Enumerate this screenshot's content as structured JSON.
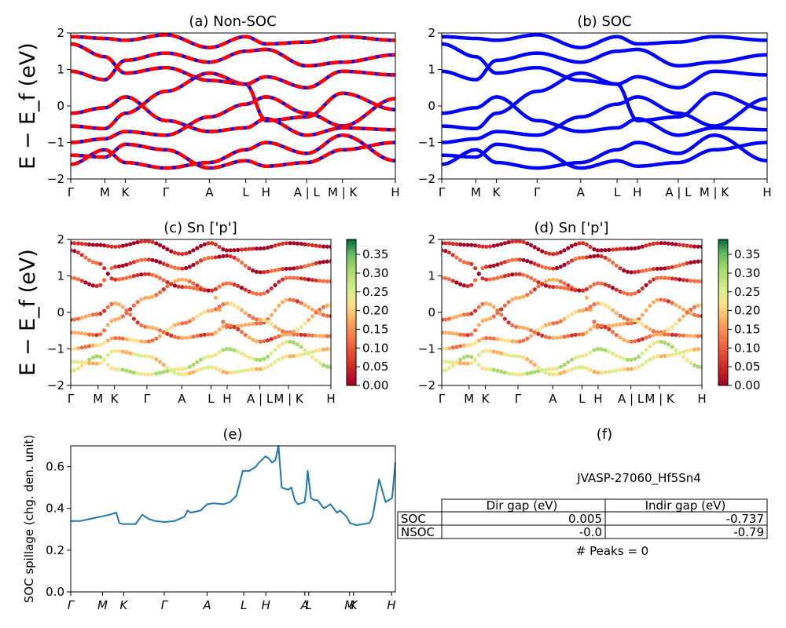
{
  "chart_data": [
    {
      "id": "a",
      "type": "line",
      "title": "(a) Non-SOC",
      "ylabel": "E − E_f (eV)",
      "ylim": [
        -2,
        2
      ],
      "yticks": [
        "2",
        "1",
        "0",
        "−1",
        "−2"
      ],
      "xticks": [
        "Γ",
        "M",
        "K",
        "Γ",
        "A",
        "L",
        "H",
        "A | L",
        "M | K",
        "H"
      ],
      "xtick_fracs": [
        0,
        0.105,
        0.168,
        0.293,
        0.427,
        0.539,
        0.601,
        0.727,
        0.837,
        1.0
      ],
      "series": [
        {
          "values": [
            -0.55,
            -0.62,
            -0.2,
            0.4,
            0.9,
            0.6,
            -0.4,
            -0.3,
            0.35,
            -0.1
          ]
        },
        {
          "values": [
            0.95,
            0.72,
            1.25,
            1.45,
            1.2,
            1.5,
            1.55,
            1.1,
            1.2,
            1.4
          ]
        },
        {
          "values": [
            -1.0,
            -0.9,
            -0.7,
            -0.8,
            -0.3,
            0.05,
            0.25,
            -0.2,
            -0.55,
            0.2
          ]
        },
        {
          "values": [
            -1.6,
            -1.2,
            -1.55,
            -1.7,
            -1.55,
            -1.2,
            -1.0,
            -1.3,
            -0.8,
            -1.5
          ]
        },
        {
          "values": [
            1.7,
            1.35,
            0.9,
            1.05,
            0.7,
            0.6,
            0.8,
            0.5,
            0.95,
            0.85
          ]
        },
        {
          "values": [
            -0.2,
            -0.05,
            0.25,
            -0.4,
            -0.7,
            -0.6,
            -0.35,
            -0.8,
            -0.6,
            -0.65
          ]
        },
        {
          "values": [
            1.9,
            1.85,
            1.8,
            1.95,
            1.6,
            1.9,
            1.7,
            1.75,
            1.9,
            1.8
          ]
        },
        {
          "values": [
            -1.35,
            -1.4,
            -1.05,
            -1.2,
            -1.7,
            -1.5,
            -1.65,
            -1.55,
            -1.2,
            -1.0
          ]
        }
      ]
    },
    {
      "id": "b",
      "type": "line",
      "title": "(b) SOC",
      "ylim": [
        -2,
        2
      ],
      "yticks": [
        "2",
        "1",
        "0",
        "−1",
        "−2"
      ],
      "xticks": [
        "Γ",
        "M",
        "K",
        "Γ",
        "A",
        "L",
        "H",
        "A | L",
        "M | K",
        "H"
      ],
      "xtick_fracs": [
        0,
        0.105,
        0.168,
        0.293,
        0.427,
        0.539,
        0.601,
        0.727,
        0.837,
        1.0
      ],
      "series": [
        {
          "values": [
            -0.55,
            -0.62,
            -0.2,
            0.4,
            0.9,
            0.6,
            -0.4,
            -0.3,
            0.35,
            -0.1
          ]
        },
        {
          "values": [
            0.95,
            0.72,
            1.25,
            1.45,
            1.2,
            1.5,
            1.55,
            1.1,
            1.2,
            1.4
          ]
        },
        {
          "values": [
            -1.0,
            -0.9,
            -0.7,
            -0.8,
            -0.3,
            0.05,
            0.25,
            -0.2,
            -0.55,
            0.2
          ]
        },
        {
          "values": [
            -1.6,
            -1.2,
            -1.55,
            -1.7,
            -1.55,
            -1.2,
            -1.0,
            -1.3,
            -0.8,
            -1.5
          ]
        },
        {
          "values": [
            1.7,
            1.35,
            0.9,
            1.05,
            0.7,
            0.6,
            0.8,
            0.5,
            0.95,
            0.85
          ]
        },
        {
          "values": [
            -0.2,
            -0.05,
            0.25,
            -0.4,
            -0.7,
            -0.6,
            -0.35,
            -0.8,
            -0.6,
            -0.65
          ]
        },
        {
          "values": [
            1.9,
            1.85,
            1.8,
            1.95,
            1.6,
            1.9,
            1.7,
            1.75,
            1.9,
            1.8
          ]
        },
        {
          "values": [
            -1.35,
            -1.4,
            -1.05,
            -1.2,
            -1.7,
            -1.5,
            -1.65,
            -1.55,
            -1.2,
            -1.0
          ]
        }
      ]
    },
    {
      "id": "c",
      "type": "scatter",
      "title": "(c)  Sn ['p']",
      "ylabel": "E − E_f (eV)",
      "ylim": [
        -2,
        2
      ],
      "yticks": [
        "2",
        "1",
        "0",
        "−1",
        "−2"
      ],
      "xticks": [
        "Γ",
        "M",
        "K",
        "Γ",
        "A",
        "L",
        "H",
        "A | L",
        "M | K",
        "H"
      ],
      "xtick_fracs": [
        0,
        0.105,
        0.168,
        0.293,
        0.427,
        0.539,
        0.601,
        0.727,
        0.837,
        1.0
      ],
      "colorbar": {
        "ticks": [
          "0.35",
          "0.30",
          "0.25",
          "0.20",
          "0.15",
          "0.10",
          "0.05",
          "0.00"
        ],
        "range": [
          0,
          0.39
        ]
      },
      "series": [
        {
          "values": [
            -0.55,
            -0.62,
            -0.2,
            0.4,
            0.9,
            0.6,
            -0.4,
            -0.3,
            0.35,
            -0.1
          ],
          "weight": 0.12
        },
        {
          "values": [
            0.95,
            0.72,
            1.25,
            1.45,
            1.2,
            1.5,
            1.55,
            1.1,
            1.2,
            1.4
          ],
          "weight": 0.05
        },
        {
          "values": [
            -1.0,
            -0.9,
            -0.7,
            -0.8,
            -0.3,
            0.05,
            0.25,
            -0.2,
            -0.55,
            0.2
          ],
          "weight": 0.15
        },
        {
          "values": [
            -1.6,
            -1.2,
            -1.55,
            -1.7,
            -1.55,
            -1.2,
            -1.0,
            -1.3,
            -0.8,
            -1.5
          ],
          "weight": 0.26
        },
        {
          "values": [
            1.7,
            1.35,
            0.9,
            1.05,
            0.7,
            0.6,
            0.8,
            0.5,
            0.95,
            0.85
          ],
          "weight": 0.07
        },
        {
          "values": [
            -0.2,
            -0.05,
            0.25,
            -0.4,
            -0.7,
            -0.6,
            -0.35,
            -0.8,
            -0.6,
            -0.65
          ],
          "weight": 0.11
        },
        {
          "values": [
            1.9,
            1.85,
            1.8,
            1.95,
            1.6,
            1.9,
            1.7,
            1.75,
            1.9,
            1.8
          ],
          "weight": 0.02
        },
        {
          "values": [
            -1.35,
            -1.4,
            -1.05,
            -1.2,
            -1.7,
            -1.5,
            -1.65,
            -1.55,
            -1.2,
            -1.0
          ],
          "weight": 0.2
        }
      ]
    },
    {
      "id": "d",
      "type": "scatter",
      "title": "(d) Sn ['p']",
      "ylim": [
        -2,
        2
      ],
      "yticks": [
        "2",
        "1",
        "0",
        "−1",
        "−2"
      ],
      "xticks": [
        "Γ",
        "M",
        "K",
        "Γ",
        "A",
        "L",
        "H",
        "A | L",
        "M | K",
        "H"
      ],
      "xtick_fracs": [
        0,
        0.105,
        0.168,
        0.293,
        0.427,
        0.539,
        0.601,
        0.727,
        0.837,
        1.0
      ],
      "colorbar": {
        "ticks": [
          "0.35",
          "0.30",
          "0.25",
          "0.20",
          "0.15",
          "0.10",
          "0.05",
          "0.00"
        ],
        "range": [
          0,
          0.39
        ]
      },
      "series": [
        {
          "values": [
            -0.55,
            -0.62,
            -0.2,
            0.4,
            0.9,
            0.6,
            -0.4,
            -0.3,
            0.35,
            -0.1
          ],
          "weight": 0.12
        },
        {
          "values": [
            0.95,
            0.72,
            1.25,
            1.45,
            1.2,
            1.5,
            1.55,
            1.1,
            1.2,
            1.4
          ],
          "weight": 0.05
        },
        {
          "values": [
            -1.0,
            -0.9,
            -0.7,
            -0.8,
            -0.3,
            0.05,
            0.25,
            -0.2,
            -0.55,
            0.2
          ],
          "weight": 0.15
        },
        {
          "values": [
            -1.6,
            -1.2,
            -1.55,
            -1.7,
            -1.55,
            -1.2,
            -1.0,
            -1.3,
            -0.8,
            -1.5
          ],
          "weight": 0.26
        },
        {
          "values": [
            1.7,
            1.35,
            0.9,
            1.05,
            0.7,
            0.6,
            0.8,
            0.5,
            0.95,
            0.85
          ],
          "weight": 0.07
        },
        {
          "values": [
            -0.2,
            -0.05,
            0.25,
            -0.4,
            -0.7,
            -0.6,
            -0.35,
            -0.8,
            -0.6,
            -0.65
          ],
          "weight": 0.11
        },
        {
          "values": [
            1.9,
            1.85,
            1.8,
            1.95,
            1.6,
            1.9,
            1.7,
            1.75,
            1.9,
            1.8
          ],
          "weight": 0.02
        },
        {
          "values": [
            -1.35,
            -1.4,
            -1.05,
            -1.2,
            -1.7,
            -1.5,
            -1.65,
            -1.55,
            -1.2,
            -1.0
          ],
          "weight": 0.2
        }
      ]
    },
    {
      "id": "e",
      "type": "line",
      "title": "(e)",
      "ylabel": "SOC spillage (chg. den. unit)",
      "ylim": [
        0,
        0.7
      ],
      "yticks": [
        "0.0",
        "0.2",
        "0.4",
        "0.6"
      ],
      "xticks": [
        "Γ",
        "M",
        "K",
        "Γ",
        "A",
        "L",
        "H",
        "A",
        "L",
        "M",
        "K",
        "H"
      ],
      "xtick_fracs": [
        0,
        0.098,
        0.163,
        0.288,
        0.42,
        0.533,
        0.601,
        0.721,
        0.733,
        0.859,
        0.871,
        0.988
      ],
      "series": [
        {
          "x": [
            0,
            0.03,
            0.06,
            0.09,
            0.12,
            0.14,
            0.15,
            0.16,
            0.2,
            0.22,
            0.24,
            0.26,
            0.29,
            0.32,
            0.35,
            0.36,
            0.37,
            0.4,
            0.42,
            0.44,
            0.47,
            0.49,
            0.51,
            0.52,
            0.53,
            0.55,
            0.57,
            0.58,
            0.6,
            0.61,
            0.62,
            0.63,
            0.64,
            0.65,
            0.67,
            0.68,
            0.69,
            0.7,
            0.72,
            0.725,
            0.73,
            0.74,
            0.75,
            0.76,
            0.78,
            0.8,
            0.82,
            0.83,
            0.85,
            0.86,
            0.88,
            0.92,
            0.93,
            0.95,
            0.97,
            0.98,
            0.99,
            1.0
          ],
          "y": [
            0.34,
            0.34,
            0.35,
            0.36,
            0.37,
            0.38,
            0.33,
            0.325,
            0.325,
            0.37,
            0.35,
            0.34,
            0.335,
            0.34,
            0.36,
            0.39,
            0.38,
            0.39,
            0.42,
            0.425,
            0.42,
            0.43,
            0.46,
            0.52,
            0.58,
            0.58,
            0.6,
            0.62,
            0.65,
            0.64,
            0.62,
            0.63,
            0.7,
            0.5,
            0.49,
            0.5,
            0.44,
            0.42,
            0.43,
            0.48,
            0.58,
            0.45,
            0.44,
            0.44,
            0.4,
            0.42,
            0.38,
            0.39,
            0.36,
            0.33,
            0.32,
            0.33,
            0.36,
            0.54,
            0.43,
            0.44,
            0.45,
            0.62
          ]
        }
      ]
    }
  ],
  "panel_f": {
    "title": "(f)",
    "material": "JVASP-27060_Hf5Sn4",
    "table": {
      "headers": [
        "Dir gap (eV)",
        "Indir gap (eV)"
      ],
      "rows": [
        {
          "label": "SOC",
          "dir": "0.005",
          "indir": "-0.737"
        },
        {
          "label": "NSOC",
          "dir": "-0.0",
          "indir": "-0.79"
        }
      ]
    },
    "peaks": "# Peaks = 0"
  }
}
